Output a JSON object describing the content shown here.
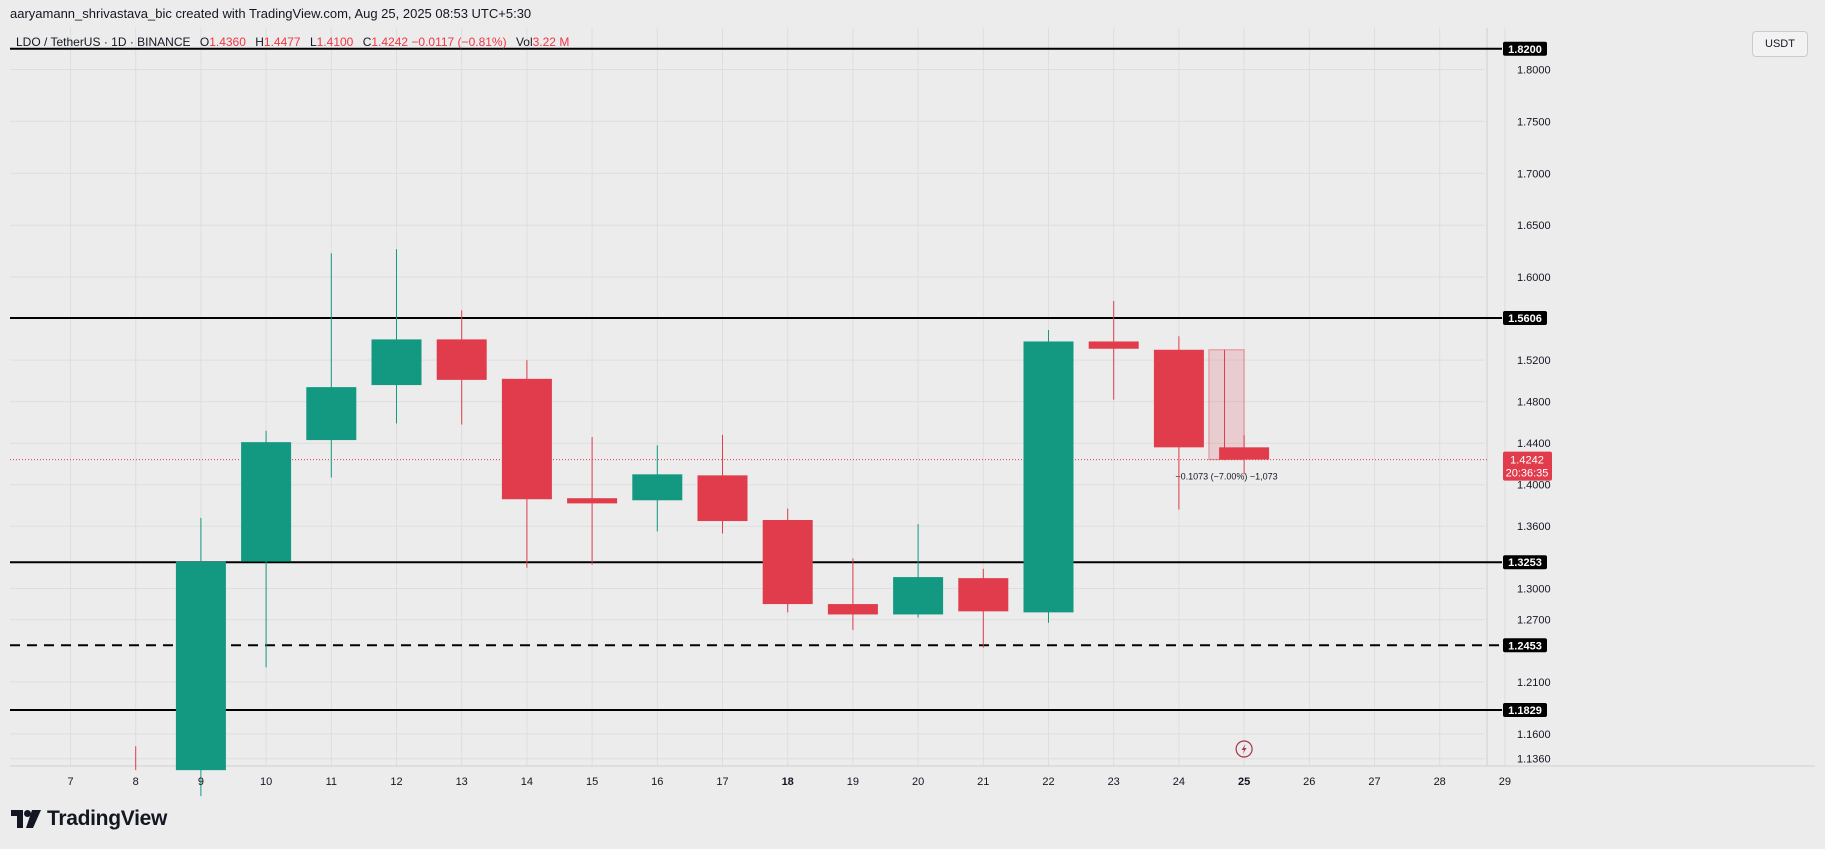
{
  "header": {
    "attribution": "aaryamann_shrivastava_bic created with TradingView.com, Aug 25, 2025 08:53 UTC+5:30"
  },
  "legend": {
    "symbol": "LDO / TetherUS · 1D · BINANCE",
    "open_label": "O",
    "open": "1.4360",
    "high_label": "H",
    "high": "1.4477",
    "low_label": "L",
    "low": "1.4100",
    "close_label": "C",
    "close": "1.4242",
    "change": "−0.0117 (−0.81%)",
    "vol_label": "Vol",
    "vol": "3.22 M"
  },
  "currency_button": "USDT",
  "brand": {
    "name": "TradingView"
  },
  "colors": {
    "up": "#139982",
    "down": "#e03c4c",
    "price_tag": "#e03c4c",
    "level_line": "#000000"
  },
  "chart_data": {
    "type": "candlestick",
    "symbol": "LDO / TetherUS",
    "interval": "1D",
    "exchange": "BINANCE",
    "x_ticks": [
      "7",
      "8",
      "9",
      "10",
      "11",
      "12",
      "13",
      "14",
      "15",
      "16",
      "17",
      "18",
      "19",
      "20",
      "21",
      "22",
      "23",
      "24",
      "25",
      "26",
      "27",
      "28",
      "29"
    ],
    "bold_ticks": [
      "18",
      "25"
    ],
    "y_ticks": [
      "1.8000",
      "1.7500",
      "1.7000",
      "1.6500",
      "1.6000",
      "1.5200",
      "1.4800",
      "1.4400",
      "1.4000",
      "1.3600",
      "1.3000",
      "1.2700",
      "1.2100",
      "1.1600",
      "1.1360"
    ],
    "ylim": [
      1.129,
      1.84
    ],
    "candles": [
      {
        "day": "8",
        "open": 1.14,
        "high": 1.148,
        "low": 1.125,
        "close": 1.135
      },
      {
        "day": "9",
        "open": 1.125,
        "high": 1.368,
        "low": 1.1,
        "close": 1.326
      },
      {
        "day": "10",
        "open": 1.326,
        "high": 1.452,
        "low": 1.224,
        "close": 1.441
      },
      {
        "day": "11",
        "open": 1.443,
        "high": 1.623,
        "low": 1.407,
        "close": 1.494
      },
      {
        "day": "12",
        "open": 1.496,
        "high": 1.627,
        "low": 1.459,
        "close": 1.54
      },
      {
        "day": "13",
        "open": 1.54,
        "high": 1.568,
        "low": 1.458,
        "close": 1.501
      },
      {
        "day": "14",
        "open": 1.502,
        "high": 1.52,
        "low": 1.32,
        "close": 1.386
      },
      {
        "day": "15",
        "open": 1.387,
        "high": 1.446,
        "low": 1.323,
        "close": 1.382
      },
      {
        "day": "16",
        "open": 1.385,
        "high": 1.438,
        "low": 1.355,
        "close": 1.41
      },
      {
        "day": "17",
        "open": 1.409,
        "high": 1.448,
        "low": 1.353,
        "close": 1.365
      },
      {
        "day": "18",
        "open": 1.366,
        "high": 1.377,
        "low": 1.277,
        "close": 1.285
      },
      {
        "day": "19",
        "open": 1.285,
        "high": 1.329,
        "low": 1.26,
        "close": 1.275
      },
      {
        "day": "20",
        "open": 1.275,
        "high": 1.362,
        "low": 1.272,
        "close": 1.311
      },
      {
        "day": "21",
        "open": 1.31,
        "high": 1.319,
        "low": 1.243,
        "close": 1.278
      },
      {
        "day": "22",
        "open": 1.277,
        "high": 1.549,
        "low": 1.267,
        "close": 1.538
      },
      {
        "day": "23",
        "open": 1.538,
        "high": 1.577,
        "low": 1.482,
        "close": 1.531
      },
      {
        "day": "24",
        "open": 1.53,
        "high": 1.543,
        "low": 1.376,
        "close": 1.436
      },
      {
        "day": "25",
        "open": 1.436,
        "high": 1.4477,
        "low": 1.41,
        "close": 1.4242
      }
    ],
    "horizontal_levels": [
      {
        "value": 1.82,
        "label": "1.8200",
        "style": "solid"
      },
      {
        "value": 1.5606,
        "label": "1.5606",
        "style": "solid"
      },
      {
        "value": 1.3253,
        "label": "1.3253",
        "style": "solid"
      },
      {
        "value": 1.2453,
        "label": "1.2453",
        "style": "dashed"
      },
      {
        "value": 1.1829,
        "label": "1.1829",
        "style": "solid"
      }
    ],
    "last_price": {
      "value": 1.4242,
      "label": "1.4242",
      "countdown": "20:36:35"
    },
    "measure": {
      "from_day": "24",
      "to_day": "25",
      "from_price": 1.53,
      "to_price": 1.4242,
      "label": "−0.1073 (−7.00%) −1,073"
    },
    "event_icon": {
      "day": "25",
      "icon": "lightning-icon"
    }
  }
}
